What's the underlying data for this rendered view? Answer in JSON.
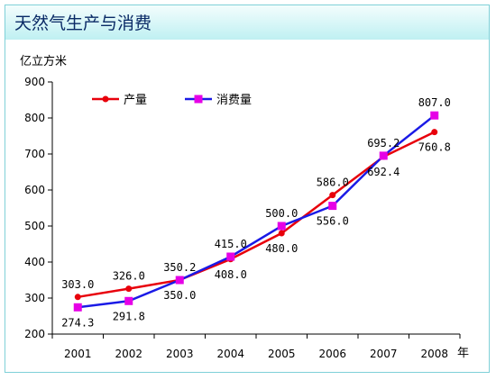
{
  "title": "天然气生产与消费",
  "chart_data": {
    "type": "line",
    "ylabel": "亿立方米",
    "xlabel": "年",
    "categories": [
      "2001",
      "2002",
      "2003",
      "2004",
      "2005",
      "2006",
      "2007",
      "2008"
    ],
    "ylim": [
      200,
      900
    ],
    "yticks": [
      200,
      300,
      400,
      500,
      600,
      700,
      800,
      900
    ],
    "legend_position": "top-left",
    "series": [
      {
        "name": "产量",
        "color": "#e8000b",
        "marker": "circle",
        "values": [
          303.0,
          326.0,
          350.2,
          408.0,
          480.0,
          586.0,
          692.4,
          760.8
        ],
        "labels": [
          "303.0",
          "326.0",
          "350.2",
          "408.0",
          "480.0",
          "586.0",
          "692.4",
          "760.8"
        ]
      },
      {
        "name": "消费量",
        "color": "#1a1ae6",
        "marker": "square",
        "marker_color": "#e600e6",
        "values": [
          274.3,
          291.8,
          350.0,
          415.0,
          500.0,
          556.0,
          695.2,
          807.0
        ],
        "labels": [
          "274.3",
          "291.8",
          "350.0",
          "415.0",
          "500.0",
          "556.0",
          "695.2",
          "807.0"
        ]
      }
    ]
  }
}
